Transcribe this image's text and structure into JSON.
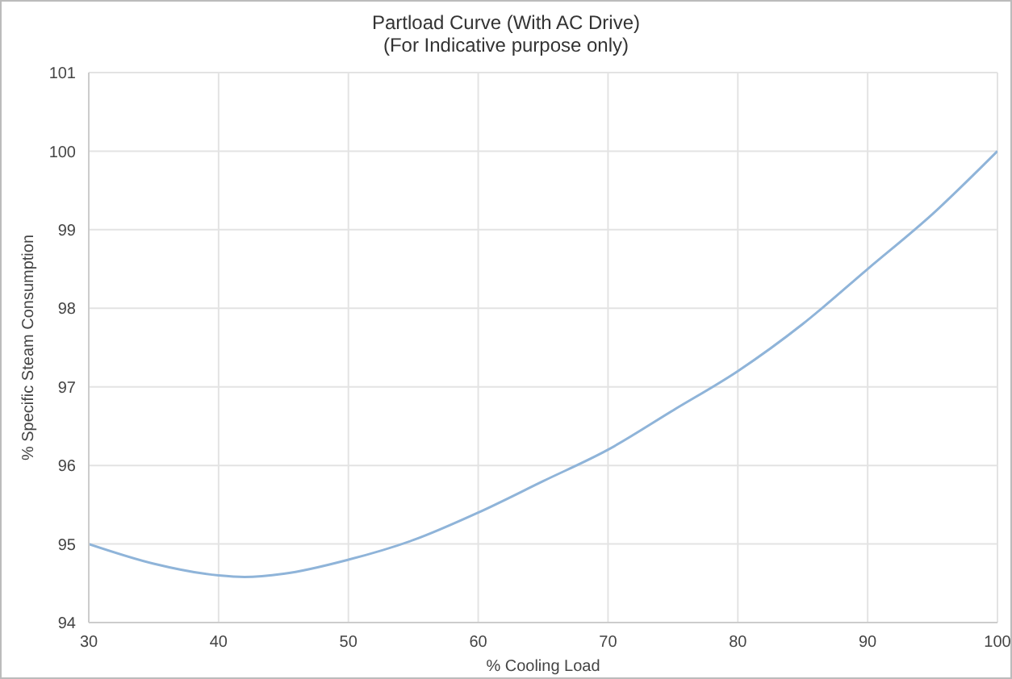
{
  "chart_data": {
    "type": "line",
    "title": "Partload Curve (With AC Drive)",
    "subtitle": "(For Indicative purpose only)",
    "xlabel": "% Cooling Load",
    "ylabel": "% Specific Steam Consumption",
    "x": [
      30,
      35,
      40,
      42,
      45,
      50,
      55,
      60,
      65,
      70,
      75,
      80,
      85,
      90,
      95,
      100
    ],
    "series": [
      {
        "color": "#8fb4d9",
        "values": [
          95.0,
          94.75,
          94.6,
          94.58,
          94.62,
          94.8,
          95.05,
          95.4,
          95.8,
          96.2,
          96.7,
          97.2,
          97.8,
          98.5,
          99.2,
          100.0
        ]
      }
    ],
    "xlim": [
      30,
      100
    ],
    "xticks": [
      30,
      40,
      50,
      60,
      70,
      80,
      90,
      100
    ],
    "ylim": [
      94,
      101
    ],
    "yticks": [
      94,
      95,
      96,
      97,
      98,
      99,
      100,
      101
    ],
    "grid": true,
    "marker": "none",
    "line_style": "solid"
  }
}
